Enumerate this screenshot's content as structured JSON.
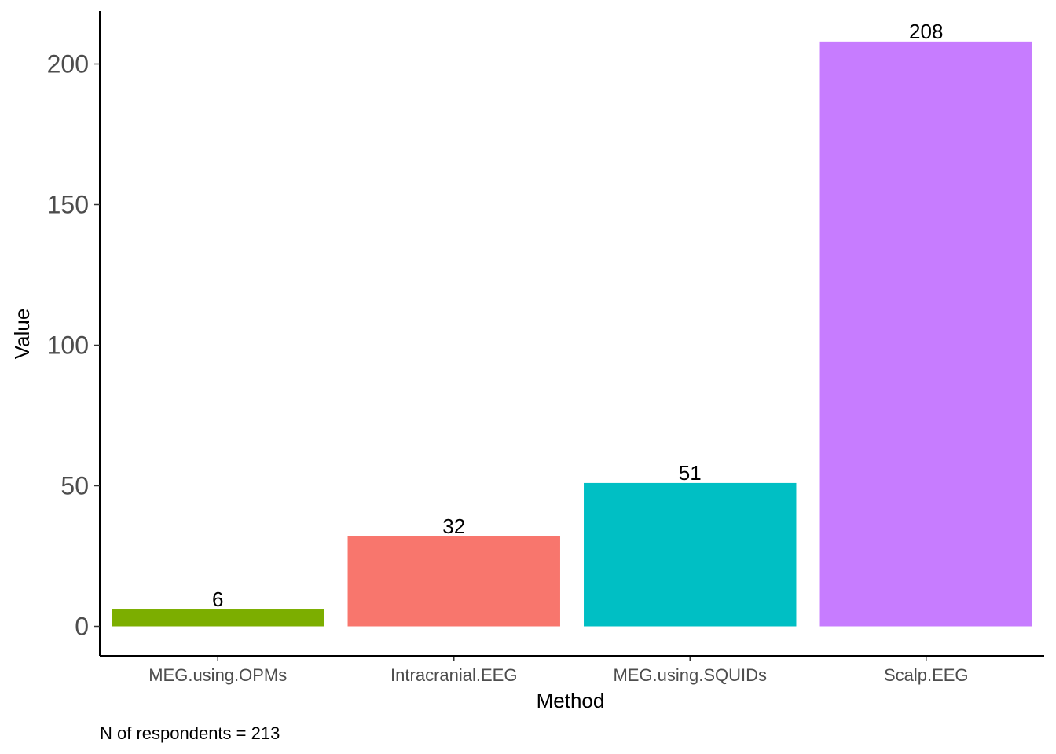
{
  "chart_data": {
    "type": "bar",
    "categories": [
      "MEG.using.OPMs",
      "Intracranial.EEG",
      "MEG.using.SQUIDs",
      "Scalp.EEG"
    ],
    "values": [
      6,
      32,
      51,
      208
    ],
    "colors": [
      "#7CAE00",
      "#F8766D",
      "#00BFC4",
      "#C77CFF"
    ],
    "title": "",
    "xlabel": "Method",
    "ylabel": "Value",
    "ylim": [
      0,
      218
    ],
    "yticks": [
      0,
      50,
      100,
      150,
      200
    ],
    "grid": false,
    "legend": "none",
    "caption": "N of respondents = 213"
  }
}
